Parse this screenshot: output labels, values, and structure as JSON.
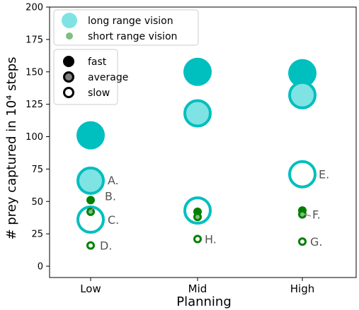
{
  "chart_data": {
    "type": "scatter",
    "xlabel": "Planning",
    "ylabel": "# prey captured in 10⁴ steps",
    "categories": [
      "Low",
      "Mid",
      "High"
    ],
    "ylim": [
      0,
      200
    ],
    "yticks": [
      0,
      25,
      50,
      75,
      100,
      125,
      150,
      175,
      200
    ],
    "legend_vision": {
      "placement": "top-left",
      "entries": [
        {
          "label": "long range vision",
          "color": "#00bfbf"
        },
        {
          "label": "short range vision",
          "color": "#008000"
        }
      ]
    },
    "legend_speed": {
      "placement": "upper-left",
      "entries": [
        {
          "label": "fast",
          "style": "filled"
        },
        {
          "label": "average",
          "style": "light-fill"
        },
        {
          "label": "slow",
          "style": "hollow"
        }
      ]
    },
    "series": [
      {
        "vision": "long",
        "speed": "fast",
        "values": [
          101,
          150,
          149
        ]
      },
      {
        "vision": "long",
        "speed": "average",
        "values": [
          66,
          118,
          132
        ]
      },
      {
        "vision": "long",
        "speed": "slow",
        "values": [
          36,
          43,
          71
        ]
      },
      {
        "vision": "short",
        "speed": "fast",
        "values": [
          51,
          42,
          43
        ]
      },
      {
        "vision": "short",
        "speed": "average",
        "values": [
          42,
          38,
          40
        ]
      },
      {
        "vision": "short",
        "speed": "slow",
        "values": [
          16,
          21,
          19
        ]
      }
    ],
    "annotations": [
      {
        "text": "A.",
        "category": "Low",
        "y": 66
      },
      {
        "text": "B.",
        "category": "Low",
        "y": 51
      },
      {
        "text": "C.",
        "category": "Low",
        "y": 36
      },
      {
        "text": "D.",
        "category": "Low",
        "y": 16
      },
      {
        "text": "E.",
        "category": "High",
        "y": 71
      },
      {
        "text": "F.",
        "category": "High",
        "y": 40
      },
      {
        "text": "G.",
        "category": "High",
        "y": 19
      },
      {
        "text": "H.",
        "category": "Mid",
        "y": 21
      }
    ],
    "colors": {
      "long_fill": "#00bfbf",
      "long_light": "#7fe3e3",
      "short_fill": "#008000",
      "short_light": "#7fbf7f",
      "annotation": "#555555"
    }
  }
}
